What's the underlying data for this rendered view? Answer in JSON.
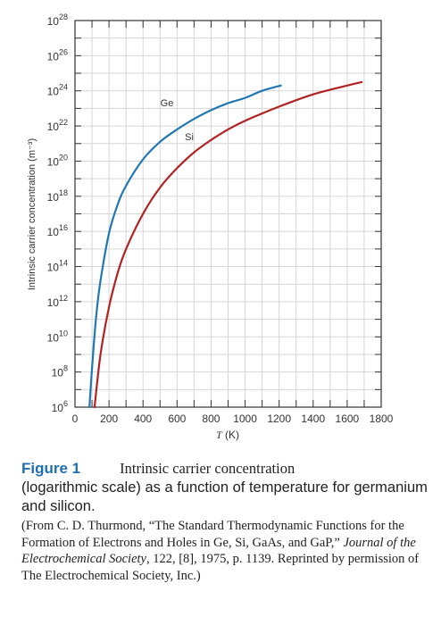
{
  "chart_data": {
    "type": "line",
    "title": "",
    "xlabel": "T (K)",
    "ylabel": "Intrinsic carrier concentration (m⁻³)",
    "xlim": [
      0,
      1800
    ],
    "ylim_log10": [
      6,
      28
    ],
    "yscale": "log",
    "grid": true,
    "x_ticks": [
      "0",
      "200",
      "400",
      "600",
      "800",
      "1000",
      "1200",
      "1400",
      "1600",
      "1800"
    ],
    "y_ticks": [
      {
        "base": "10",
        "exp": "6"
      },
      {
        "base": "10",
        "exp": "8"
      },
      {
        "base": "10",
        "exp": "10"
      },
      {
        "base": "10",
        "exp": "12"
      },
      {
        "base": "10",
        "exp": "14"
      },
      {
        "base": "10",
        "exp": "16"
      },
      {
        "base": "10",
        "exp": "18"
      },
      {
        "base": "10",
        "exp": "20"
      },
      {
        "base": "10",
        "exp": "22"
      },
      {
        "base": "10",
        "exp": "24"
      },
      {
        "base": "10",
        "exp": "26"
      },
      {
        "base": "10",
        "exp": "28"
      }
    ],
    "series": [
      {
        "name": "Ge",
        "color": "#1f78b4",
        "x": [
          85,
          100,
          125,
          150,
          200,
          250,
          300,
          400,
          500,
          600,
          700,
          800,
          900,
          1000,
          1100,
          1210
        ],
        "log10_y": [
          6,
          8.2,
          11.2,
          13.2,
          15.9,
          17.5,
          18.6,
          20.1,
          21.1,
          21.8,
          22.4,
          22.9,
          23.3,
          23.6,
          24.0,
          24.3
        ]
      },
      {
        "name": "Si",
        "color": "#b22222",
        "x": [
          115,
          150,
          200,
          250,
          300,
          400,
          500,
          600,
          700,
          800,
          900,
          1000,
          1200,
          1400,
          1600,
          1685
        ],
        "log10_y": [
          6,
          9.0,
          11.7,
          13.6,
          15.0,
          17.0,
          18.5,
          19.6,
          20.5,
          21.2,
          21.8,
          22.3,
          23.1,
          23.8,
          24.3,
          24.5
        ]
      }
    ]
  },
  "caption": {
    "label": "Figure 1",
    "first": "Intrinsic carrier concentration",
    "rest": "(logarithmic scale) as a function of temperature for germanium and silicon.",
    "source_pre": "(From C. D. Thurmond, “The Standard Thermodynamic Functions for the Formation of Electrons and Holes in Ge, Si, GaAs, and GaP,” ",
    "source_journal": "Journal of the Electrochemical Society",
    "source_post": ", 122, [8], 1975, p. 1139. Reprinted by permission of The Electrochemical Society, Inc.)"
  }
}
